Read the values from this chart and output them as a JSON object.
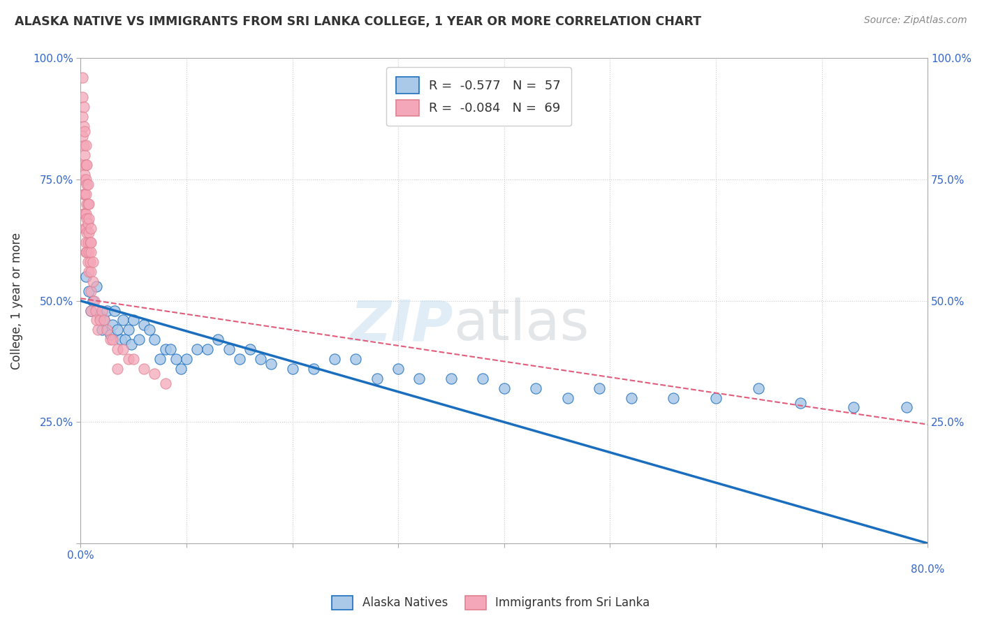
{
  "title": "ALASKA NATIVE VS IMMIGRANTS FROM SRI LANKA COLLEGE, 1 YEAR OR MORE CORRELATION CHART",
  "source": "Source: ZipAtlas.com",
  "ylabel": "College, 1 year or more",
  "xlim": [
    0.0,
    0.8
  ],
  "ylim": [
    0.0,
    1.0
  ],
  "xticks": [
    0.0,
    0.1,
    0.2,
    0.3,
    0.4,
    0.5,
    0.6,
    0.7,
    0.8
  ],
  "yticks": [
    0.0,
    0.25,
    0.5,
    0.75,
    1.0
  ],
  "alaska_color": "#aac8e8",
  "srilanka_color": "#f4a7b9",
  "alaska_line_color": "#1a6ebd",
  "srilanka_line_color": "#e05c7a",
  "R_alaska": -0.577,
  "N_alaska": 57,
  "R_srilanka": -0.084,
  "N_srilanka": 69,
  "legend_label_alaska": "Alaska Natives",
  "legend_label_srilanka": "Immigrants from Sri Lanka",
  "background_color": "#ffffff",
  "grid_color": "#cccccc",
  "alaska_line_y0": 0.5,
  "alaska_line_y1": 0.0,
  "srilanka_line_y0": 0.505,
  "srilanka_line_y1": 0.245,
  "alaska_x": [
    0.005,
    0.008,
    0.01,
    0.012,
    0.015,
    0.018,
    0.02,
    0.022,
    0.025,
    0.028,
    0.03,
    0.032,
    0.035,
    0.038,
    0.04,
    0.042,
    0.045,
    0.048,
    0.05,
    0.055,
    0.06,
    0.065,
    0.07,
    0.075,
    0.08,
    0.085,
    0.09,
    0.095,
    0.1,
    0.11,
    0.12,
    0.13,
    0.14,
    0.15,
    0.16,
    0.17,
    0.18,
    0.2,
    0.22,
    0.24,
    0.26,
    0.28,
    0.3,
    0.32,
    0.35,
    0.38,
    0.4,
    0.43,
    0.46,
    0.49,
    0.52,
    0.56,
    0.6,
    0.64,
    0.68,
    0.73,
    0.78
  ],
  "alaska_y": [
    0.55,
    0.52,
    0.48,
    0.5,
    0.53,
    0.47,
    0.44,
    0.46,
    0.48,
    0.43,
    0.45,
    0.48,
    0.44,
    0.42,
    0.46,
    0.42,
    0.44,
    0.41,
    0.46,
    0.42,
    0.45,
    0.44,
    0.42,
    0.38,
    0.4,
    0.4,
    0.38,
    0.36,
    0.38,
    0.4,
    0.4,
    0.42,
    0.4,
    0.38,
    0.4,
    0.38,
    0.37,
    0.36,
    0.36,
    0.38,
    0.38,
    0.34,
    0.36,
    0.34,
    0.34,
    0.34,
    0.32,
    0.32,
    0.3,
    0.32,
    0.3,
    0.3,
    0.3,
    0.32,
    0.29,
    0.28,
    0.28
  ],
  "srilanka_x": [
    0.002,
    0.002,
    0.002,
    0.003,
    0.003,
    0.003,
    0.003,
    0.003,
    0.003,
    0.004,
    0.004,
    0.004,
    0.004,
    0.004,
    0.005,
    0.005,
    0.005,
    0.005,
    0.005,
    0.005,
    0.005,
    0.006,
    0.006,
    0.006,
    0.006,
    0.006,
    0.007,
    0.007,
    0.007,
    0.007,
    0.008,
    0.008,
    0.008,
    0.008,
    0.009,
    0.009,
    0.01,
    0.01,
    0.01,
    0.01,
    0.01,
    0.012,
    0.012,
    0.013,
    0.014,
    0.015,
    0.016,
    0.018,
    0.02,
    0.022,
    0.025,
    0.028,
    0.03,
    0.035,
    0.04,
    0.045,
    0.05,
    0.06,
    0.07,
    0.08,
    0.002,
    0.003,
    0.004,
    0.005,
    0.006,
    0.007,
    0.008,
    0.01,
    0.035
  ],
  "srilanka_y": [
    0.96,
    0.92,
    0.88,
    0.86,
    0.82,
    0.78,
    0.75,
    0.72,
    0.68,
    0.8,
    0.76,
    0.72,
    0.68,
    0.65,
    0.78,
    0.75,
    0.72,
    0.68,
    0.65,
    0.62,
    0.6,
    0.74,
    0.7,
    0.67,
    0.64,
    0.6,
    0.7,
    0.66,
    0.62,
    0.58,
    0.67,
    0.64,
    0.6,
    0.56,
    0.62,
    0.58,
    0.65,
    0.6,
    0.56,
    0.52,
    0.48,
    0.58,
    0.54,
    0.5,
    0.48,
    0.46,
    0.44,
    0.46,
    0.48,
    0.46,
    0.44,
    0.42,
    0.42,
    0.4,
    0.4,
    0.38,
    0.38,
    0.36,
    0.35,
    0.33,
    0.84,
    0.9,
    0.85,
    0.82,
    0.78,
    0.74,
    0.7,
    0.62,
    0.36
  ]
}
